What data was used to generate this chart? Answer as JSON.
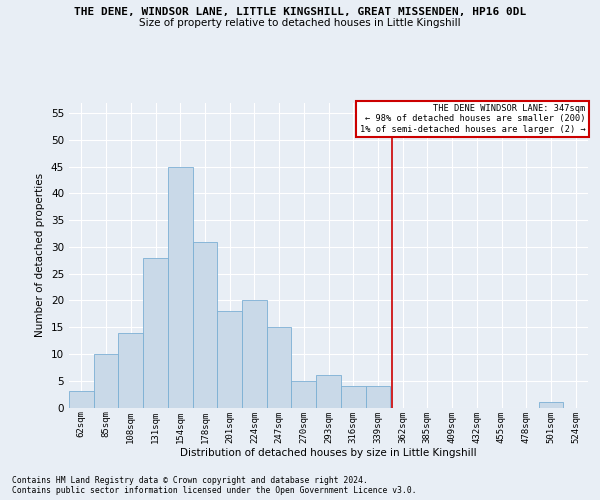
{
  "title": "THE DENE, WINDSOR LANE, LITTLE KINGSHILL, GREAT MISSENDEN, HP16 0DL",
  "subtitle": "Size of property relative to detached houses in Little Kingshill",
  "xlabel": "Distribution of detached houses by size in Little Kingshill",
  "ylabel": "Number of detached properties",
  "categories": [
    "62sqm",
    "85sqm",
    "108sqm",
    "131sqm",
    "154sqm",
    "178sqm",
    "201sqm",
    "224sqm",
    "247sqm",
    "270sqm",
    "293sqm",
    "316sqm",
    "339sqm",
    "362sqm",
    "385sqm",
    "409sqm",
    "432sqm",
    "455sqm",
    "478sqm",
    "501sqm",
    "524sqm"
  ],
  "values": [
    3,
    10,
    14,
    28,
    45,
    31,
    18,
    20,
    15,
    5,
    6,
    4,
    4,
    0,
    0,
    0,
    0,
    0,
    0,
    1,
    0
  ],
  "bar_color": "#c9d9e8",
  "bar_edgecolor": "#7bafd4",
  "vline_x_index": 12.55,
  "vline_color": "#cc0000",
  "legend_title": "THE DENE WINDSOR LANE: 347sqm",
  "legend_line1": "← 98% of detached houses are smaller (200)",
  "legend_line2": "1% of semi-detached houses are larger (2) →",
  "ylim": [
    0,
    57
  ],
  "yticks": [
    0,
    5,
    10,
    15,
    20,
    25,
    30,
    35,
    40,
    45,
    50,
    55
  ],
  "footnote1": "Contains HM Land Registry data © Crown copyright and database right 2024.",
  "footnote2": "Contains public sector information licensed under the Open Government Licence v3.0.",
  "bg_color": "#e8eef5",
  "grid_color": "#ffffff"
}
